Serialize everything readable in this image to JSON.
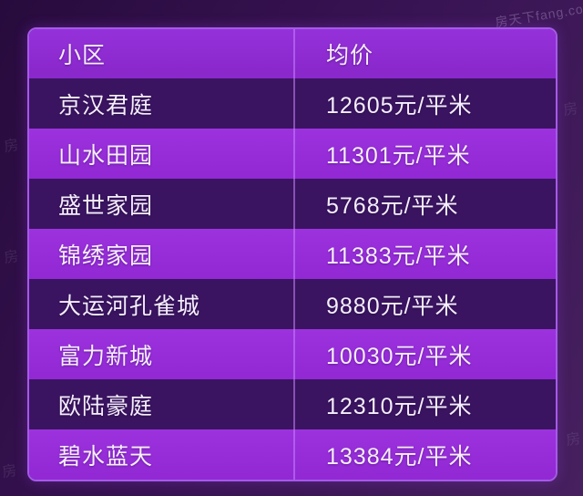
{
  "chart_data": {
    "type": "table",
    "columns": [
      "小区",
      "均价"
    ],
    "unit": "元/平米",
    "rows": [
      {
        "community": "京汉君庭",
        "avg_price": 12605,
        "avg_price_text": "12605元/平米"
      },
      {
        "community": "山水田园",
        "avg_price": 11301,
        "avg_price_text": "11301元/平米"
      },
      {
        "community": "盛世家园",
        "avg_price": 5768,
        "avg_price_text": "5768元/平米"
      },
      {
        "community": "锦绣家园",
        "avg_price": 11383,
        "avg_price_text": "11383元/平米"
      },
      {
        "community": "大运河孔雀城",
        "avg_price": 9880,
        "avg_price_text": "9880元/平米"
      },
      {
        "community": "富力新城",
        "avg_price": 10030,
        "avg_price_text": "10030元/平米"
      },
      {
        "community": "欧陆豪庭",
        "avg_price": 12310,
        "avg_price_text": "12310元/平米"
      },
      {
        "community": "碧水蓝天",
        "avg_price": 13384,
        "avg_price_text": "13384元/平米"
      }
    ]
  },
  "watermarks": {
    "brand": "房天下fang.com",
    "fragment": "房"
  },
  "colors": {
    "page_bg_dark": "#280b3d",
    "page_bg_light": "#46205f",
    "header_bg": "#8a28cc",
    "row_dark_bg": "#3a1460",
    "row_bright_bg": "#9229d5",
    "table_border": "#a55ae8",
    "text": "#f5eefc"
  }
}
